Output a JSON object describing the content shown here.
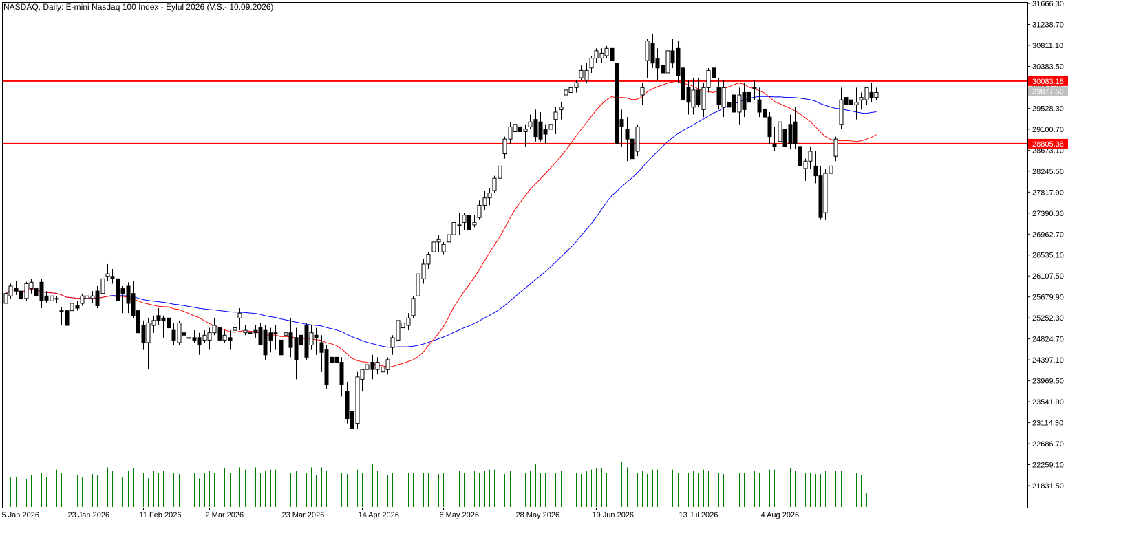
{
  "colors": {
    "background": "#ffffff",
    "axis": "#000000",
    "bull_candle": "#ffffff",
    "bear_candle": "#000000",
    "ma_fast": "#ff0000",
    "ma_slow": "#0000ff",
    "volume": "#008000",
    "level_lines": "#ff0000",
    "current_price_line": "#c0c0c0",
    "current_price_label_bg": "#c0c0c0",
    "level_label_bg": "#ff0000",
    "level_label_text": "#ffffff"
  },
  "chart_data": {
    "type": "candlestick",
    "title": "NASDAQ, Daily:  E-mini Nasdaq 100 Index - Eylul 2026 (V.S.- 10.09.2026)",
    "y_ticks": [
      31666.3,
      31238.7,
      30811.1,
      30383.5,
      29955.9,
      29528.3,
      29100.7,
      28673.1,
      28245.5,
      27817.9,
      27390.3,
      26962.7,
      26535.1,
      26107.5,
      25679.9,
      25252.3,
      24824.7,
      24397.1,
      23969.5,
      23541.9,
      23114.3,
      22686.7,
      22259.1,
      21831.5
    ],
    "y_tick_labels": [
      "31666.30",
      "31238.70",
      "30811.10",
      "30383.50",
      "29955.90",
      "29528.30",
      "29100.70",
      "28673.10",
      "28245.50",
      "27817.90",
      "27390.30",
      "26962.70",
      "26535.10",
      "26107.50",
      "25679.90",
      "25252.30",
      "24824.70",
      "24397.10",
      "23969.50",
      "23541.90",
      "23114.30",
      "22686.70",
      "22259.10",
      "21831.50"
    ],
    "ylim": [
      21660,
      31680
    ],
    "x_labels": [
      {
        "bar": 0,
        "label": "5 Jan 2026"
      },
      {
        "bar": 13,
        "label": "23 Jan 2026"
      },
      {
        "bar": 27,
        "label": "11 Feb 2026"
      },
      {
        "bar": 40,
        "label": "2 Mar 2026"
      },
      {
        "bar": 55,
        "label": "23 Mar 2026"
      },
      {
        "bar": 70,
        "label": "14 Apr 2026"
      },
      {
        "bar": 86,
        "label": "6 May 2026"
      },
      {
        "bar": 101,
        "label": "28 May 2026"
      },
      {
        "bar": 116,
        "label": "19 Jun 2026"
      },
      {
        "bar": 133,
        "label": "13 Jul 2026"
      },
      {
        "bar": 149,
        "label": "4 Aug 2026"
      }
    ],
    "levels": [
      {
        "value": 30083.18,
        "label": "30083.18",
        "kind": "resistance"
      },
      {
        "value": 28805.36,
        "label": "28805.36",
        "kind": "support"
      }
    ],
    "current_price": {
      "value": 29877.5,
      "label": "29877.50"
    },
    "candles": [
      [
        25550,
        25800,
        25450,
        25750
      ],
      [
        25700,
        25950,
        25650,
        25900
      ],
      [
        25850,
        26000,
        25720,
        25800
      ],
      [
        25800,
        25980,
        25600,
        25650
      ],
      [
        25650,
        25990,
        25600,
        25950
      ],
      [
        25850,
        26050,
        25750,
        25980
      ],
      [
        25850,
        26050,
        25600,
        25700
      ],
      [
        25980,
        26050,
        25450,
        25600
      ],
      [
        25700,
        25800,
        25550,
        25600
      ],
      [
        25600,
        25750,
        25500,
        25700
      ],
      [
        25650,
        25700,
        25550,
        25650
      ],
      [
        25400,
        25480,
        25100,
        25380
      ],
      [
        25400,
        25450,
        25000,
        25100
      ],
      [
        25400,
        25750,
        25300,
        25550
      ],
      [
        25500,
        25600,
        25400,
        25450
      ],
      [
        25550,
        25750,
        25500,
        25700
      ],
      [
        25650,
        25850,
        25600,
        25700
      ],
      [
        25650,
        25800,
        25550,
        25700
      ],
      [
        25800,
        25900,
        25450,
        25500
      ],
      [
        25750,
        26100,
        25700,
        26050
      ],
      [
        26100,
        26350,
        26000,
        26150
      ],
      [
        26100,
        26250,
        25950,
        26050
      ],
      [
        26050,
        26100,
        25550,
        25600
      ],
      [
        25850,
        25900,
        25350,
        25750
      ],
      [
        25900,
        25980,
        25350,
        25550
      ],
      [
        25750,
        26000,
        25250,
        25300
      ],
      [
        25400,
        25480,
        24800,
        24950
      ],
      [
        25100,
        25200,
        24600,
        24750
      ],
      [
        24750,
        25250,
        24200,
        25150
      ],
      [
        25100,
        25300,
        24950,
        25200
      ],
      [
        25300,
        25450,
        25100,
        25200
      ],
      [
        25250,
        25300,
        24850,
        25200
      ],
      [
        25250,
        25400,
        24900,
        25050
      ],
      [
        25000,
        25150,
        24700,
        24800
      ],
      [
        24750,
        25200,
        24700,
        25150
      ],
      [
        24950,
        25200,
        24850,
        24900
      ],
      [
        24850,
        25000,
        24700,
        24850
      ],
      [
        24850,
        25000,
        24750,
        24800
      ],
      [
        24850,
        24950,
        24500,
        24700
      ],
      [
        24800,
        25000,
        24750,
        24900
      ],
      [
        24800,
        25050,
        24600,
        24950
      ],
      [
        24950,
        25250,
        24900,
        25100
      ],
      [
        25050,
        25150,
        24750,
        24800
      ],
      [
        24800,
        25000,
        24750,
        24900
      ],
      [
        24850,
        25000,
        24600,
        24800
      ],
      [
        25000,
        25100,
        24750,
        25050
      ],
      [
        25250,
        25450,
        25000,
        25350
      ],
      [
        24950,
        25100,
        24900,
        25000
      ],
      [
        24950,
        25050,
        24800,
        24950
      ],
      [
        25000,
        25100,
        24850,
        24950
      ],
      [
        25050,
        25150,
        24700,
        24700
      ],
      [
        25000,
        25100,
        24400,
        24500
      ],
      [
        24950,
        25050,
        24550,
        24800
      ],
      [
        24950,
        25100,
        24600,
        24950
      ],
      [
        24800,
        25000,
        24500,
        24500
      ],
      [
        24900,
        25050,
        24550,
        24950
      ],
      [
        24950,
        25250,
        24450,
        24650
      ],
      [
        24850,
        25050,
        24000,
        24400
      ],
      [
        24900,
        25000,
        24600,
        24700
      ],
      [
        25100,
        25150,
        24400,
        24450
      ],
      [
        24700,
        25100,
        24600,
        24950
      ],
      [
        24900,
        25050,
        24500,
        24850
      ],
      [
        24750,
        24900,
        24150,
        24550
      ],
      [
        24600,
        24700,
        23800,
        23900
      ],
      [
        24450,
        24550,
        24050,
        24350
      ],
      [
        24450,
        24550,
        24050,
        24350
      ],
      [
        24350,
        24450,
        23650,
        23900
      ],
      [
        23750,
        23950,
        23100,
        23200
      ],
      [
        23350,
        23400,
        22950,
        23000
      ],
      [
        23100,
        24150,
        23000,
        24050
      ],
      [
        24000,
        24200,
        23750,
        24200
      ],
      [
        24200,
        24400,
        24050,
        24300
      ],
      [
        24350,
        24500,
        24000,
        24200
      ],
      [
        24200,
        24450,
        24100,
        24350
      ],
      [
        24150,
        24450,
        23950,
        24250
      ],
      [
        24200,
        24450,
        24100,
        24400
      ],
      [
        24650,
        24900,
        24500,
        24850
      ],
      [
        24800,
        25300,
        24650,
        25200
      ],
      [
        25050,
        25300,
        25000,
        25150
      ],
      [
        25100,
        25350,
        25000,
        25250
      ],
      [
        25300,
        25700,
        25250,
        25650
      ],
      [
        25700,
        26200,
        25650,
        26150
      ],
      [
        26050,
        26450,
        25950,
        26350
      ],
      [
        26350,
        26600,
        26250,
        26550
      ],
      [
        26600,
        26850,
        26450,
        26800
      ],
      [
        26800,
        26950,
        26600,
        26850
      ],
      [
        26600,
        26800,
        26550,
        26750
      ],
      [
        26800,
        27000,
        26650,
        26950
      ],
      [
        26950,
        27300,
        26800,
        27200
      ],
      [
        27150,
        27400,
        26950,
        27150
      ],
      [
        27200,
        27400,
        27050,
        27350
      ],
      [
        27350,
        27500,
        27050,
        27050
      ],
      [
        27150,
        27350,
        27100,
        27200
      ],
      [
        27300,
        27650,
        27250,
        27550
      ],
      [
        27550,
        27850,
        27450,
        27700
      ],
      [
        27700,
        27900,
        27550,
        27800
      ],
      [
        27850,
        28150,
        27800,
        28100
      ],
      [
        28100,
        28400,
        28000,
        28350
      ],
      [
        28600,
        28950,
        28500,
        28900
      ],
      [
        28900,
        29250,
        28800,
        29150
      ],
      [
        29050,
        29300,
        28900,
        29200
      ],
      [
        29150,
        29300,
        29000,
        29050
      ],
      [
        29050,
        29200,
        28750,
        29100
      ],
      [
        29150,
        29400,
        29100,
        29250
      ],
      [
        29300,
        29500,
        28850,
        28950
      ],
      [
        29250,
        29450,
        28850,
        28900
      ],
      [
        29100,
        29200,
        28800,
        29000
      ],
      [
        29100,
        29300,
        28950,
        29200
      ],
      [
        29300,
        29550,
        29000,
        29450
      ],
      [
        29500,
        29650,
        29300,
        29550
      ],
      [
        29800,
        30000,
        29700,
        29900
      ],
      [
        29850,
        30050,
        29800,
        29950
      ],
      [
        29950,
        30100,
        29850,
        30050
      ],
      [
        30150,
        30400,
        30100,
        30300
      ],
      [
        30100,
        30450,
        30050,
        30300
      ],
      [
        30350,
        30600,
        30250,
        30550
      ],
      [
        30550,
        30750,
        30450,
        30700
      ],
      [
        30550,
        30750,
        30450,
        30650
      ],
      [
        30600,
        30800,
        30550,
        30750
      ],
      [
        30750,
        30850,
        30400,
        30500
      ],
      [
        30450,
        30500,
        28700,
        28800
      ],
      [
        29300,
        29500,
        28750,
        29150
      ],
      [
        29100,
        29350,
        28450,
        28900
      ],
      [
        28900,
        29200,
        28350,
        28500
      ],
      [
        28650,
        29200,
        28550,
        29150
      ],
      [
        29800,
        30050,
        29600,
        29950
      ],
      [
        30500,
        30950,
        30150,
        30900
      ],
      [
        30850,
        31050,
        30350,
        30450
      ],
      [
        30550,
        30750,
        30100,
        30350
      ],
      [
        30400,
        30600,
        29950,
        30250
      ],
      [
        30250,
        30750,
        30150,
        30700
      ],
      [
        30700,
        30950,
        30350,
        30450
      ],
      [
        30750,
        30900,
        30050,
        30200
      ],
      [
        30350,
        30450,
        29450,
        29700
      ],
      [
        29950,
        30100,
        29400,
        29650
      ],
      [
        29550,
        30150,
        29400,
        29900
      ],
      [
        29900,
        30150,
        29550,
        29600
      ],
      [
        29500,
        30050,
        29350,
        29950
      ],
      [
        29950,
        30350,
        29850,
        30300
      ],
      [
        30350,
        30450,
        29950,
        30150
      ],
      [
        29950,
        30150,
        29500,
        29600
      ],
      [
        29550,
        30100,
        29350,
        29950
      ],
      [
        29650,
        29850,
        29350,
        29550
      ],
      [
        29800,
        29950,
        29200,
        29450
      ],
      [
        29450,
        29950,
        29200,
        29800
      ],
      [
        29850,
        30050,
        29350,
        29500
      ],
      [
        29850,
        30000,
        29500,
        29650
      ],
      [
        29950,
        30100,
        29700,
        29950
      ],
      [
        29700,
        29950,
        29350,
        29450
      ],
      [
        29500,
        29650,
        29300,
        29350
      ],
      [
        29350,
        29450,
        28800,
        28950
      ],
      [
        28800,
        29150,
        28650,
        28750
      ],
      [
        28850,
        29300,
        28650,
        29250
      ],
      [
        29100,
        29250,
        28600,
        28750
      ],
      [
        29200,
        29400,
        28700,
        28800
      ],
      [
        29250,
        29550,
        28700,
        28800
      ],
      [
        28750,
        28800,
        28300,
        28350
      ],
      [
        28300,
        28500,
        28050,
        28450
      ],
      [
        28450,
        28750,
        28300,
        28650
      ],
      [
        28350,
        28650,
        28000,
        28150
      ],
      [
        28150,
        28350,
        27250,
        27300
      ],
      [
        27400,
        28300,
        27250,
        28200
      ],
      [
        28200,
        28450,
        27950,
        28350
      ],
      [
        28550,
        28950,
        28450,
        28900
      ],
      [
        29200,
        29950,
        29100,
        29700
      ],
      [
        29750,
        29950,
        29450,
        29600
      ],
      [
        29700,
        30050,
        29550,
        29600
      ],
      [
        29600,
        29950,
        29300,
        29650
      ],
      [
        29700,
        29850,
        29500,
        29750
      ],
      [
        29700,
        29950,
        29600,
        29950
      ],
      [
        29850,
        30050,
        29650,
        29750
      ],
      [
        29750,
        29950,
        29700,
        29850
      ]
    ],
    "volumes": [
      0.45,
      0.55,
      0.55,
      0.5,
      0.5,
      0.58,
      0.5,
      0.62,
      0.55,
      0.5,
      0.68,
      0.62,
      0.58,
      0.45,
      0.58,
      0.55,
      0.55,
      0.6,
      0.58,
      0.55,
      0.72,
      0.65,
      0.7,
      0.55,
      0.65,
      0.7,
      0.72,
      0.62,
      0.52,
      0.65,
      0.62,
      0.65,
      0.55,
      0.62,
      0.6,
      0.65,
      0.58,
      0.62,
      0.52,
      0.62,
      0.65,
      0.62,
      0.55,
      0.7,
      0.62,
      0.62,
      0.72,
      0.68,
      0.72,
      0.72,
      0.62,
      0.65,
      0.68,
      0.68,
      0.65,
      0.7,
      0.62,
      0.65,
      0.62,
      0.62,
      0.72,
      0.58,
      0.72,
      0.65,
      0.58,
      0.68,
      0.62,
      0.6,
      0.62,
      0.68,
      0.62,
      0.65,
      0.78,
      0.65,
      0.58,
      0.58,
      0.62,
      0.7,
      0.68,
      0.62,
      0.62,
      0.58,
      0.62,
      0.62,
      0.65,
      0.6,
      0.62,
      0.6,
      0.62,
      0.65,
      0.62,
      0.62,
      0.65,
      0.62,
      0.65,
      0.68,
      0.68,
      0.65,
      0.6,
      0.65,
      0.72,
      0.65,
      0.62,
      0.65,
      0.78,
      0.62,
      0.62,
      0.65,
      0.62,
      0.65,
      0.62,
      0.62,
      0.62,
      0.6,
      0.65,
      0.68,
      0.7,
      0.7,
      0.62,
      0.7,
      0.7,
      0.82,
      0.72,
      0.6,
      0.62,
      0.65,
      0.6,
      0.68,
      0.68,
      0.65,
      0.68,
      0.68,
      0.62,
      0.65,
      0.62,
      0.65,
      0.62,
      0.68,
      0.65,
      0.62,
      0.62,
      0.6,
      0.62,
      0.65,
      0.62,
      0.62,
      0.65,
      0.65,
      0.62,
      0.68,
      0.68,
      0.68,
      0.7,
      0.62,
      0.7,
      0.65,
      0.62,
      0.62,
      0.62,
      0.6,
      0.6,
      0.65,
      0.62,
      0.65,
      0.65,
      0.65,
      0.62,
      0.62,
      0.58,
      0.25
    ]
  }
}
